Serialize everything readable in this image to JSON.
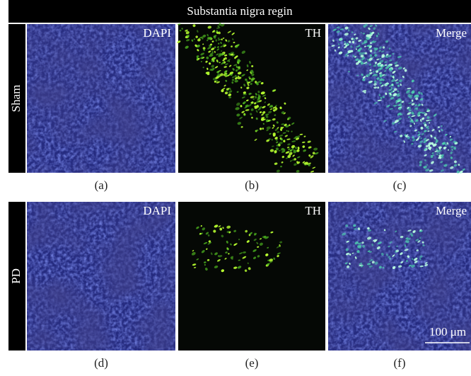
{
  "header": {
    "title": "Substantia nigra regin"
  },
  "rows": [
    {
      "label": "Sham",
      "panels": [
        {
          "label": "DAPI",
          "caption": "(a)"
        },
        {
          "label": "TH",
          "caption": "(b)"
        },
        {
          "label": "Merge",
          "caption": "(c)"
        }
      ]
    },
    {
      "label": "PD",
      "panels": [
        {
          "label": "DAPI",
          "caption": "(d)"
        },
        {
          "label": "TH",
          "caption": "(e)"
        },
        {
          "label": "Merge",
          "caption": "(f)"
        }
      ]
    }
  ],
  "scale_bar": {
    "label": "100 μm"
  }
}
